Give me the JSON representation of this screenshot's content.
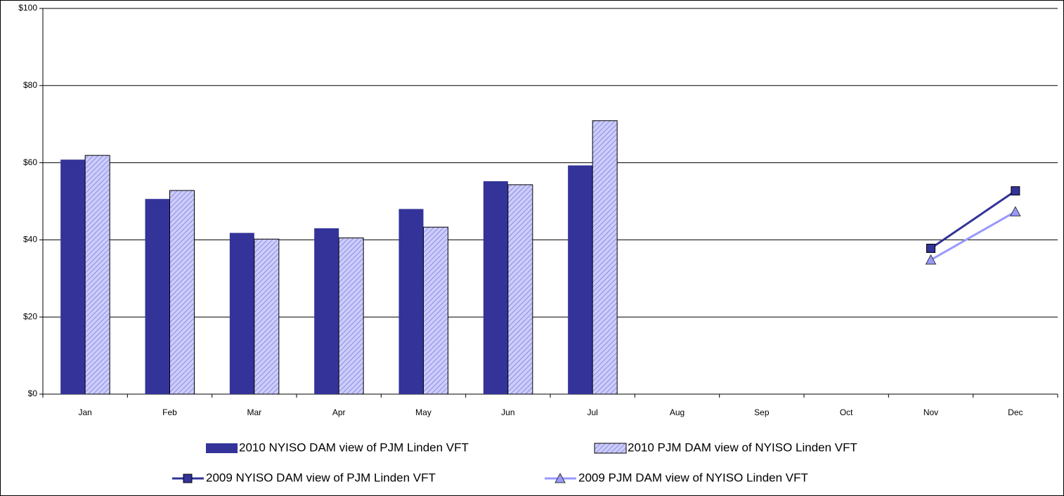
{
  "chart_data": {
    "type": "bar",
    "categories": [
      "Jan",
      "Feb",
      "Mar",
      "Apr",
      "May",
      "Jun",
      "Jul",
      "Aug",
      "Sep",
      "Oct",
      "Nov",
      "Dec"
    ],
    "series": [
      {
        "name": "2010 NYISO DAM view of PJM Linden VFT",
        "type": "bar",
        "color": "#333399",
        "pattern": "solid",
        "values": [
          60.8,
          50.6,
          41.8,
          43.0,
          48.0,
          55.2,
          59.3,
          null,
          null,
          null,
          null,
          null
        ]
      },
      {
        "name": "2010 PJM DAM view of NYISO Linden VFT",
        "type": "bar",
        "color": "#ccccff",
        "pattern": "hatch",
        "values": [
          61.9,
          52.8,
          40.2,
          40.5,
          43.3,
          54.3,
          70.9,
          null,
          null,
          null,
          null,
          null
        ]
      },
      {
        "name": "2009 NYISO DAM view of PJM Linden VFT",
        "type": "line",
        "color": "#333399",
        "marker": "square",
        "values": [
          null,
          null,
          null,
          null,
          null,
          null,
          null,
          null,
          null,
          null,
          37.8,
          52.7
        ]
      },
      {
        "name": "2009 PJM DAM view of NYISO Linden VFT",
        "type": "line",
        "color": "#9999ff",
        "marker": "triangle",
        "values": [
          null,
          null,
          null,
          null,
          null,
          null,
          null,
          null,
          null,
          null,
          34.8,
          47.3
        ]
      }
    ],
    "ylim": [
      0,
      100
    ],
    "yticks": [
      {
        "value": 0,
        "label": "$0"
      },
      {
        "value": 20,
        "label": "$20"
      },
      {
        "value": 40,
        "label": "$40"
      },
      {
        "value": 60,
        "label": "$60"
      },
      {
        "value": 80,
        "label": "$80"
      },
      {
        "value": 100,
        "label": "$100"
      }
    ],
    "grid": true,
    "legend": "bottom"
  }
}
